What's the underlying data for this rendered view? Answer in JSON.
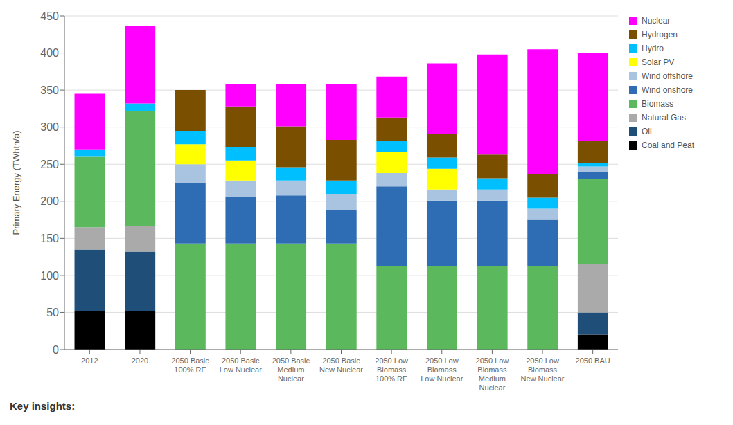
{
  "chart_data": {
    "type": "bar",
    "stacked": true,
    "ylabel": "Primary Energy (TWhth/a)",
    "categories": [
      "2012",
      "2020",
      "2050 Basic\n100% RE",
      "2050 Basic\nLow Nuclear",
      "2050 Basic\nMedium\nNuclear",
      "2050 Basic\nNew Nuclear",
      "2050 Low\nBiomass\n100% RE",
      "2050 Low\nBiomass\nLow Nuclear",
      "2050 Low\nBiomass\nMedium\nNuclear",
      "2050 Low\nBiomass\nNew Nuclear",
      "2050 BAU"
    ],
    "series": [
      {
        "name": "Coal and Peat",
        "color": "#000000",
        "values": [
          52,
          52,
          0,
          0,
          0,
          0,
          0,
          0,
          0,
          0,
          20
        ]
      },
      {
        "name": "Oil",
        "color": "#1f4e79",
        "values": [
          83,
          80,
          0,
          0,
          0,
          0,
          0,
          0,
          0,
          0,
          30
        ]
      },
      {
        "name": "Natural Gas",
        "color": "#aaaaaa",
        "values": [
          30,
          35,
          0,
          0,
          0,
          0,
          0,
          0,
          0,
          0,
          65
        ]
      },
      {
        "name": "Biomass",
        "color": "#5cb85c",
        "values": [
          95,
          155,
          143,
          143,
          143,
          143,
          113,
          113,
          113,
          113,
          115
        ]
      },
      {
        "name": "Wind onshore",
        "color": "#2e6db4",
        "values": [
          0,
          0,
          82,
          63,
          65,
          45,
          107,
          88,
          88,
          62,
          10
        ]
      },
      {
        "name": "Wind offshore",
        "color": "#a8c4e0",
        "values": [
          0,
          0,
          25,
          22,
          20,
          22,
          18,
          15,
          15,
          15,
          7
        ]
      },
      {
        "name": "Solar PV",
        "color": "#ffff00",
        "values": [
          0,
          0,
          27,
          27,
          0,
          0,
          28,
          28,
          0,
          0,
          0
        ]
      },
      {
        "name": "Hydro",
        "color": "#00bfff",
        "values": [
          10,
          10,
          18,
          18,
          18,
          18,
          15,
          15,
          15,
          15,
          5
        ]
      },
      {
        "name": "Hydrogen",
        "color": "#7b4f00",
        "values": [
          0,
          0,
          55,
          55,
          55,
          55,
          32,
          32,
          32,
          32,
          30
        ]
      },
      {
        "name": "Nuclear",
        "color": "#ff00ff",
        "values": [
          75,
          105,
          0,
          30,
          57,
          75,
          55,
          95,
          135,
          168,
          118
        ]
      }
    ],
    "ylim": [
      0,
      450
    ],
    "yticks": [
      0,
      50,
      100,
      150,
      200,
      250,
      300,
      350,
      400,
      450
    ],
    "grid": true,
    "legend": "right",
    "annotations": [
      "Key insights:"
    ]
  }
}
